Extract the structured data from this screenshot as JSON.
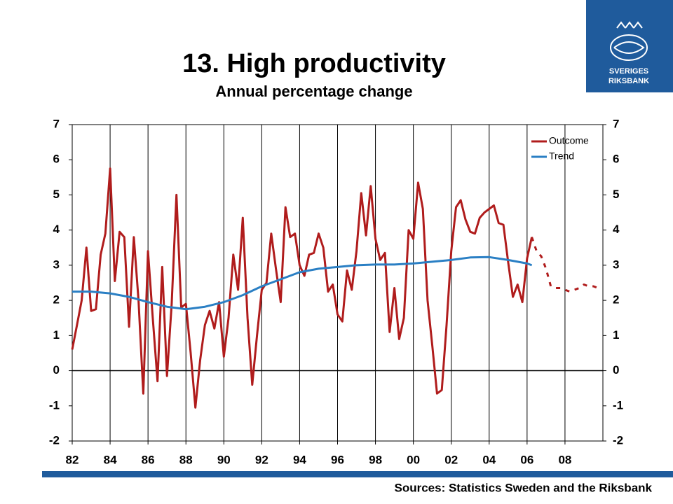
{
  "chart_data": {
    "type": "line",
    "title": "13. High productivity",
    "subtitle": "Annual percentage change",
    "source": "Sources: Statistics Sweden and the Riksbank",
    "logo": [
      "SVERIGES",
      "RIKSBANK"
    ],
    "xlim": [
      1982,
      2010
    ],
    "xticks": [
      {
        "value": 1982,
        "label": "82"
      },
      {
        "value": 1984,
        "label": "84"
      },
      {
        "value": 1986,
        "label": "86"
      },
      {
        "value": 1988,
        "label": "88"
      },
      {
        "value": 1990,
        "label": "90"
      },
      {
        "value": 1992,
        "label": "92"
      },
      {
        "value": 1994,
        "label": "94"
      },
      {
        "value": 1996,
        "label": "96"
      },
      {
        "value": 1998,
        "label": "98"
      },
      {
        "value": 2000,
        "label": "00"
      },
      {
        "value": 2002,
        "label": "02"
      },
      {
        "value": 2004,
        "label": "04"
      },
      {
        "value": 2006,
        "label": "06"
      },
      {
        "value": 2008,
        "label": "08"
      }
    ],
    "ylim": [
      -2,
      7
    ],
    "yticks": [
      -2,
      -1,
      0,
      1,
      2,
      3,
      4,
      5,
      6,
      7
    ],
    "y2lim": [
      -2,
      7
    ],
    "y2ticks": [
      -2,
      -1,
      0,
      1,
      2,
      3,
      4,
      5,
      6,
      7
    ],
    "grid": true,
    "legend": "top-right",
    "series": [
      {
        "name": "Outcome",
        "color": "#b01c1c",
        "forecast_from": 2006.25,
        "x": [
          1982,
          1982.25,
          1982.5,
          1982.75,
          1983,
          1983.25,
          1983.5,
          1983.75,
          1984,
          1984.25,
          1984.5,
          1984.75,
          1985,
          1985.25,
          1985.5,
          1985.75,
          1986,
          1986.25,
          1986.5,
          1986.75,
          1987,
          1987.25,
          1987.5,
          1987.75,
          1988,
          1988.25,
          1988.5,
          1988.75,
          1989,
          1989.25,
          1989.5,
          1989.75,
          1990,
          1990.25,
          1990.5,
          1990.75,
          1991,
          1991.25,
          1991.5,
          1991.75,
          1992,
          1992.25,
          1992.5,
          1992.75,
          1993,
          1993.25,
          1993.5,
          1993.75,
          1994,
          1994.25,
          1994.5,
          1994.75,
          1995,
          1995.25,
          1995.5,
          1995.75,
          1996,
          1996.25,
          1996.5,
          1996.75,
          1997,
          1997.25,
          1997.5,
          1997.75,
          1998,
          1998.25,
          1998.5,
          1998.75,
          1999,
          1999.25,
          1999.5,
          1999.75,
          2000,
          2000.25,
          2000.5,
          2000.75,
          2001,
          2001.25,
          2001.5,
          2001.75,
          2002,
          2002.25,
          2002.5,
          2002.75,
          2003,
          2003.25,
          2003.5,
          2003.75,
          2004,
          2004.25,
          2004.5,
          2004.75,
          2005,
          2005.25,
          2005.5,
          2005.75,
          2006,
          2006.25,
          2006.5,
          2006.75,
          2007,
          2007.25,
          2007.5,
          2007.75,
          2008,
          2008.25,
          2008.5,
          2008.75,
          2009,
          2009.25,
          2009.5,
          2009.75
        ],
        "values": [
          0.6,
          1.3,
          2.0,
          3.5,
          1.7,
          1.75,
          3.3,
          3.9,
          5.75,
          2.55,
          3.95,
          3.8,
          1.25,
          3.8,
          2.0,
          -0.65,
          3.4,
          1.5,
          -0.3,
          2.95,
          -0.15,
          1.9,
          5.0,
          1.8,
          1.9,
          0.5,
          -1.05,
          0.3,
          1.3,
          1.7,
          1.2,
          1.95,
          0.4,
          1.5,
          3.3,
          2.3,
          4.35,
          1.5,
          -0.4,
          1.0,
          2.3,
          2.5,
          3.9,
          2.9,
          1.95,
          4.65,
          3.8,
          3.9,
          3.0,
          2.7,
          3.3,
          3.35,
          3.9,
          3.5,
          2.25,
          2.45,
          1.6,
          1.4,
          2.85,
          2.3,
          3.4,
          5.05,
          3.85,
          5.25,
          3.75,
          3.15,
          3.35,
          1.1,
          2.35,
          0.9,
          1.5,
          4.0,
          3.75,
          5.35,
          4.6,
          2.0,
          0.7,
          -0.65,
          -0.55,
          1.3,
          3.4,
          4.65,
          4.85,
          4.3,
          3.95,
          3.9,
          4.35,
          4.5,
          4.6,
          4.7,
          4.2,
          4.15,
          3.1,
          2.1,
          2.45,
          1.95,
          3.2,
          3.8,
          3.4,
          3.25,
          2.9,
          2.4,
          2.35,
          2.35,
          2.3,
          2.25,
          2.3,
          2.35,
          2.45,
          2.4,
          2.4,
          2.35
        ]
      },
      {
        "name": "Trend",
        "color": "#2a7fc4",
        "x": [
          1982,
          1983,
          1984,
          1985,
          1986,
          1987,
          1988,
          1989,
          1990,
          1991,
          1992,
          1993,
          1994,
          1995,
          1996,
          1997,
          1998,
          1999,
          2000,
          2001,
          2002,
          2003,
          2004,
          2005,
          2006,
          2006.25
        ],
        "values": [
          2.25,
          2.25,
          2.2,
          2.1,
          1.95,
          1.82,
          1.75,
          1.82,
          1.95,
          2.15,
          2.4,
          2.6,
          2.8,
          2.9,
          2.95,
          3.0,
          3.02,
          3.02,
          3.05,
          3.1,
          3.15,
          3.22,
          3.23,
          3.15,
          3.05,
          3.0
        ]
      }
    ]
  }
}
